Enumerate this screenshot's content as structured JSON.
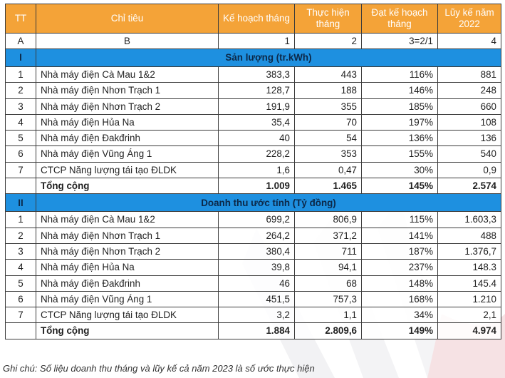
{
  "header": {
    "tt": "TT",
    "chi_tieu": "Chỉ tiêu",
    "ke_hoach": "Kế hoạch tháng",
    "thuc_hien": "Thực hiện tháng",
    "dat_ke_hoach": "Đạt kế hoạch tháng",
    "luy_ke": "Lũy kế năm 2022"
  },
  "index_row": [
    "A",
    "B",
    "1",
    "2",
    "3=2/1",
    "4"
  ],
  "sections": [
    {
      "roman": "I",
      "title": "Sản lượng (tr.kWh)",
      "rows": [
        {
          "tt": "1",
          "name": "Nhà máy điện Cà Mau 1&2",
          "plan": "383,3",
          "actual": "443",
          "pct": "116%",
          "ytd": "881"
        },
        {
          "tt": "2",
          "name": "Nhà máy điện Nhơn Trạch  1",
          "plan": "128,7",
          "actual": "188",
          "pct": "146%",
          "ytd": "248"
        },
        {
          "tt": "3",
          "name": "Nhà máy điện Nhơn Trạch  2",
          "plan": "191,9",
          "actual": "355",
          "pct": "185%",
          "ytd": "660"
        },
        {
          "tt": "4",
          "name": "Nhà máy điện Hủa Na",
          "plan": "35,4",
          "actual": "70",
          "pct": "197%",
          "ytd": "108"
        },
        {
          "tt": "5",
          "name": "Nhà máy điện Đakđrinh",
          "plan": "40",
          "actual": "54",
          "pct": "136%",
          "ytd": "136"
        },
        {
          "tt": "6",
          "name": "Nhà máy điện Vũng Áng 1",
          "plan": "228,2",
          "actual": "353",
          "pct": "155%",
          "ytd": "540"
        },
        {
          "tt": "7",
          "name": "CTCP Năng lượng tái tạo ĐLDK",
          "plan": "1,6",
          "actual": "0,47",
          "pct": "30%",
          "ytd": "0,9"
        }
      ],
      "total": {
        "label": "Tổng cộng",
        "plan": "1.009",
        "actual": "1.465",
        "pct": "145%",
        "ytd": "2.574"
      }
    },
    {
      "roman": "II",
      "title": "Doanh thu ước tính (Tỷ đồng)",
      "rows": [
        {
          "tt": "1",
          "name": "Nhà máy điện Cà Mau 1&2",
          "plan": "699,2",
          "actual": "806,9",
          "pct": "115%",
          "ytd": "1.603,3"
        },
        {
          "tt": "2",
          "name": "Nhà máy điện Nhơn Trạch  1",
          "plan": "264,2",
          "actual": "371,2",
          "pct": "141%",
          "ytd": "488"
        },
        {
          "tt": "3",
          "name": "Nhà máy điện Nhơn Trạch  2",
          "plan": "380,4",
          "actual": "711",
          "pct": "187%",
          "ytd": "1.376,7"
        },
        {
          "tt": "4",
          "name": "Nhà máy điện Hủa Na",
          "plan": "39,8",
          "actual": "94,1",
          "pct": "237%",
          "ytd": "148.3"
        },
        {
          "tt": "5",
          "name": "Nhà máy điện Đakđrinh",
          "plan": "46",
          "actual": "68",
          "pct": "148%",
          "ytd": "145.4"
        },
        {
          "tt": "6",
          "name": "Nhà máy điện Vũng Áng 1",
          "plan": "451,5",
          "actual": "757,3",
          "pct": "168%",
          "ytd": "1.210"
        },
        {
          "tt": "7",
          "name": "CTCP Năng lượng tái tạo ĐLDK",
          "plan": "3,2",
          "actual": "1,1",
          "pct": "34%",
          "ytd": "2,1"
        }
      ],
      "total": {
        "label": "Tổng cộng",
        "plan": "1.884",
        "actual": "2.809,6",
        "pct": "149%",
        "ytd": "4.974"
      }
    }
  ],
  "note": "Ghi chú: Số liệu doanh thu tháng và lũy kế cả năm 2023 là số ước thực hiện",
  "colors": {
    "header_bg": "#f4a338",
    "section_bg": "#1e90e0",
    "section_text": "#0c2848"
  }
}
